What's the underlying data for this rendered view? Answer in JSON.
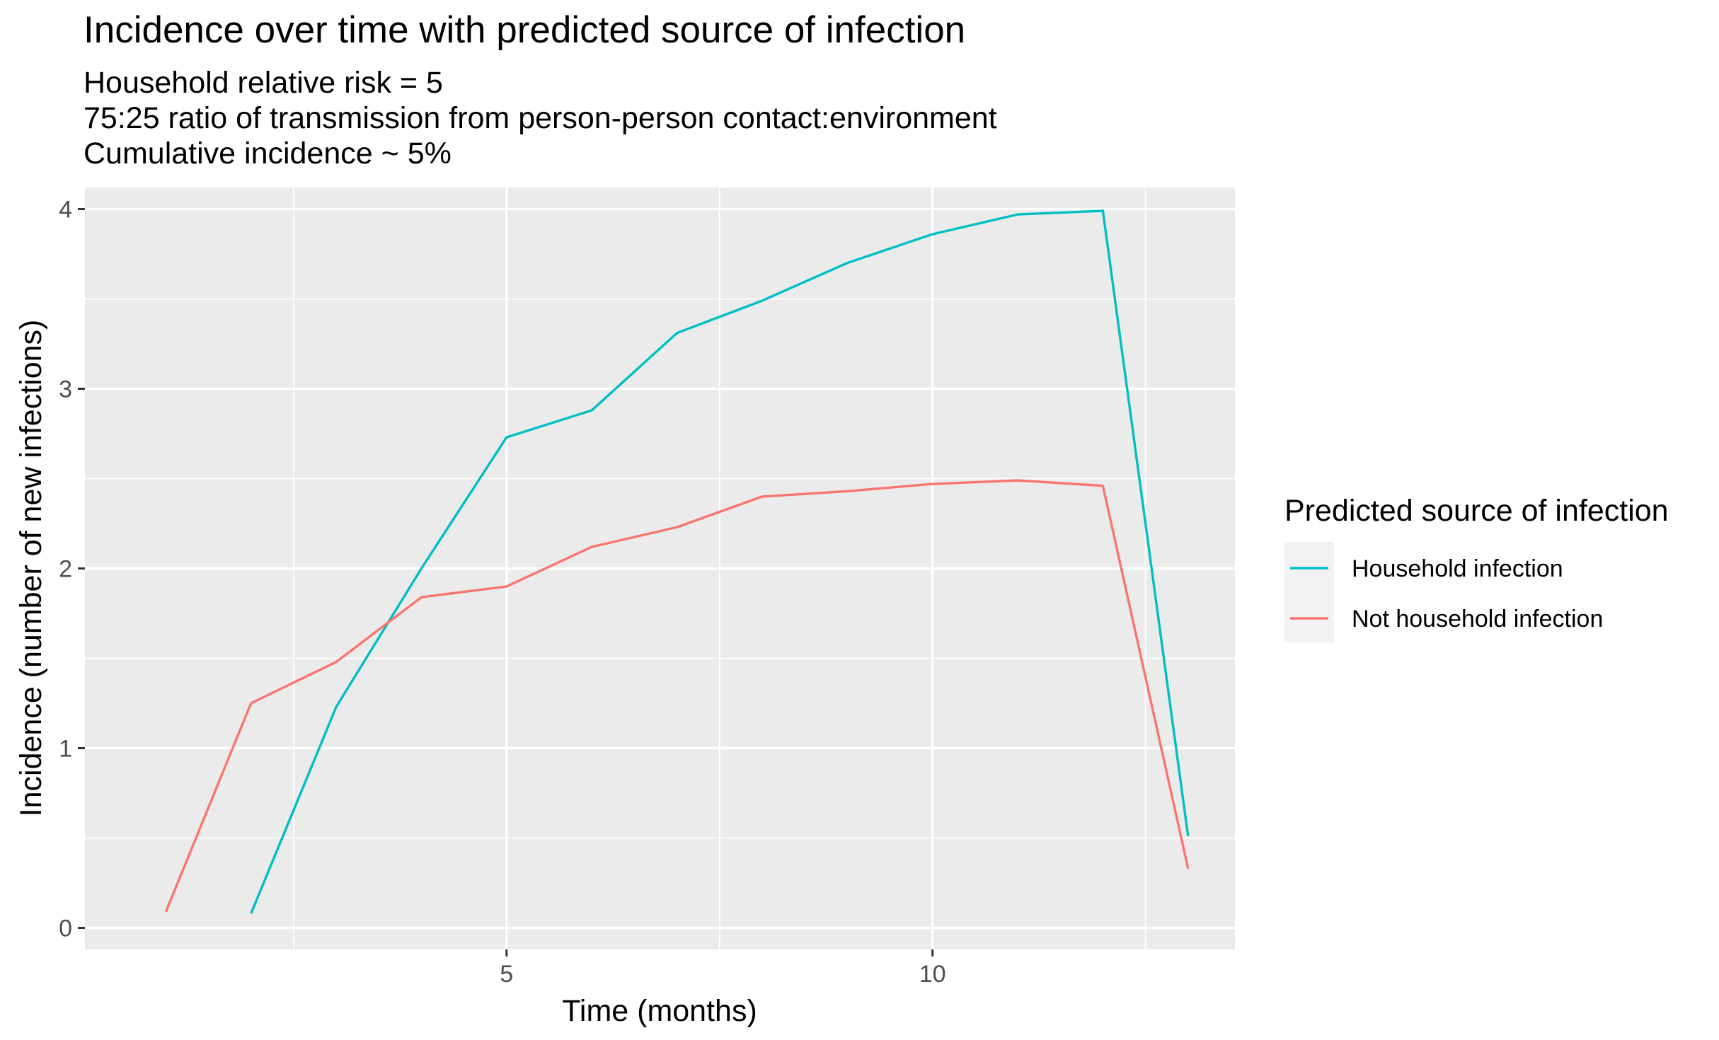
{
  "chart_data": {
    "type": "line",
    "title": "Incidence over time with predicted source of infection",
    "subtitle": [
      "Household relative risk = 5",
      "75:25 ratio of transmission from person-person contact:environment",
      "Cumulative incidence ~ 5%"
    ],
    "xlabel": "Time (months)",
    "ylabel": "Incidence (number of new infections)",
    "xlim": [
      0.05,
      13.55
    ],
    "ylim": [
      -0.12,
      4.12
    ],
    "x_ticks": [
      5,
      10
    ],
    "x_minor_ticks": [
      2.5,
      7.5,
      12.5
    ],
    "y_ticks": [
      0,
      1,
      2,
      3,
      4
    ],
    "y_minor_ticks": [
      0.5,
      1.5,
      2.5,
      3.5
    ],
    "grid": true,
    "legend": {
      "title": "Predicted source of infection",
      "position": "right"
    },
    "series": [
      {
        "name": "Household infection",
        "color": "#00BFC4",
        "x": [
          2,
          3,
          4,
          5,
          6,
          7,
          8,
          9,
          10,
          11,
          12,
          13
        ],
        "y": [
          0.08,
          1.23,
          2.0,
          2.73,
          2.88,
          3.31,
          3.49,
          3.7,
          3.86,
          3.97,
          3.99,
          0.51
        ]
      },
      {
        "name": "Not household infection",
        "color": "#F8766D",
        "x": [
          1,
          2,
          3,
          4,
          5,
          6,
          7,
          8,
          9,
          10,
          11,
          12,
          13
        ],
        "y": [
          0.09,
          1.25,
          1.48,
          1.84,
          1.9,
          2.12,
          2.23,
          2.4,
          2.43,
          2.47,
          2.49,
          2.46,
          0.33
        ]
      }
    ]
  }
}
